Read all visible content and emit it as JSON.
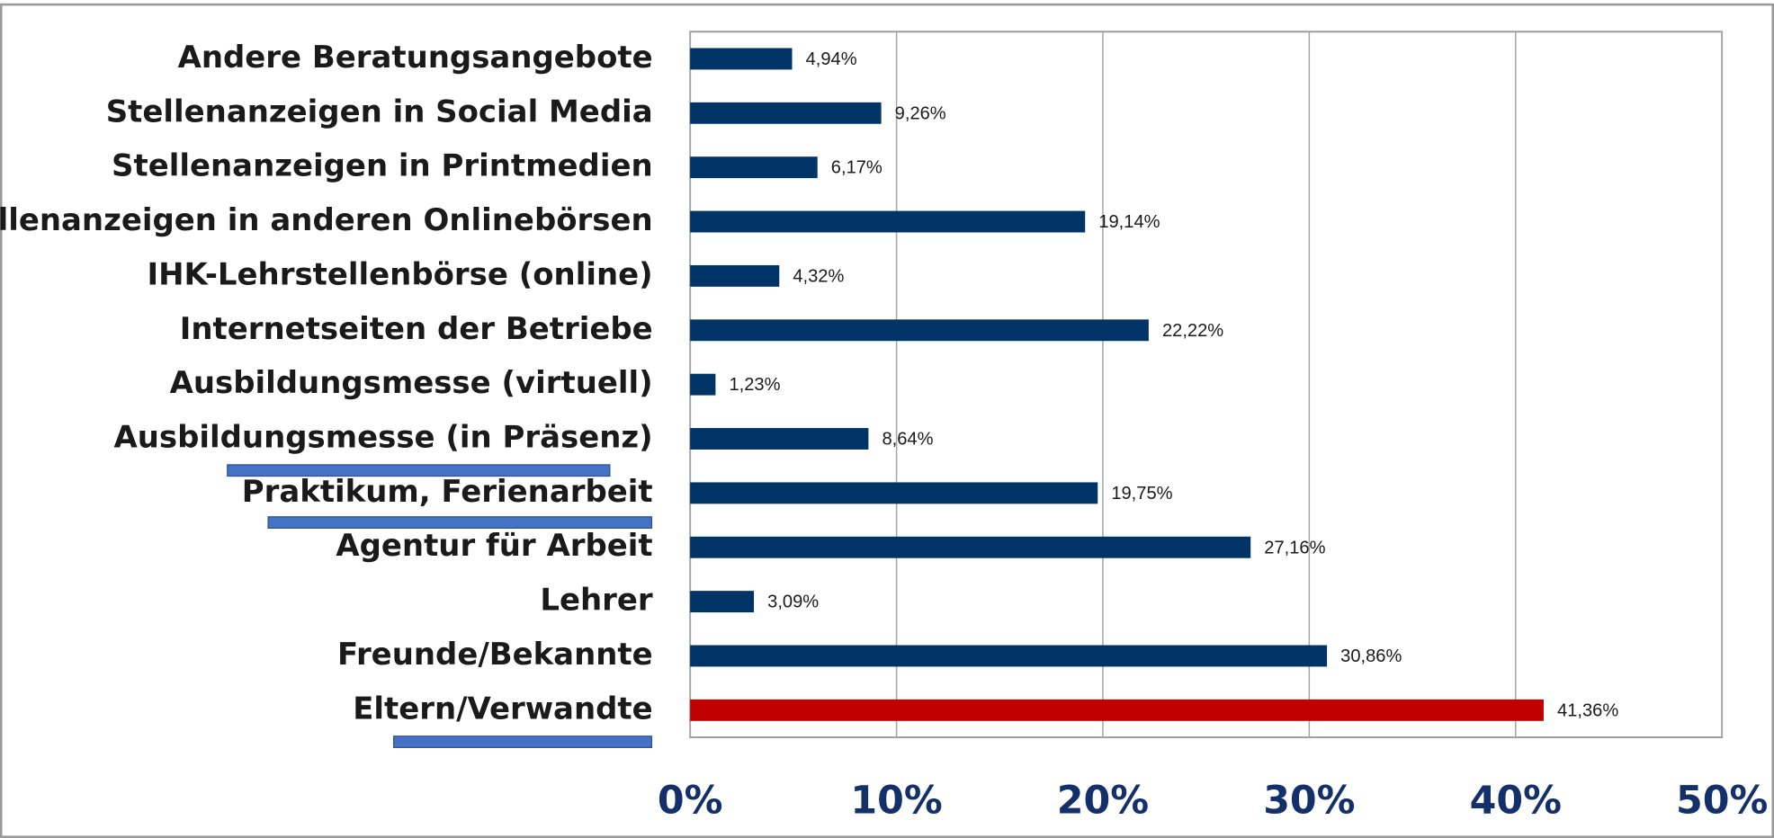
{
  "chart_data": {
    "type": "barh",
    "categories": [
      "Andere Beratungsangebote",
      "Stellenanzeigen in Social Media",
      "Stellenanzeigen in Printmedien",
      "Stellenanzeigen in anderen Onlinebörsen",
      "IHK-Lehrstellenbörse (online)",
      "Internetseiten der Betriebe",
      "Ausbildungsmesse (virtuell)",
      "Ausbildungsmesse (in Präsenz)",
      "Praktikum, Ferienarbeit",
      "Agentur für Arbeit",
      "Lehrer",
      "Freunde/Bekannte",
      "Eltern/Verwandte"
    ],
    "values": [
      4.94,
      9.26,
      6.17,
      19.14,
      4.32,
      22.22,
      1.23,
      8.64,
      19.75,
      27.16,
      3.09,
      30.86,
      41.36
    ],
    "value_labels": [
      "4,94%",
      "9,26%",
      "6,17%",
      "19,14%",
      "4,32%",
      "22,22%",
      "1,23%",
      "8,64%",
      "19,75%",
      "27,16%",
      "3,09%",
      "30,86%",
      "41,36%"
    ],
    "colors": [
      "#003366",
      "#003366",
      "#003366",
      "#003366",
      "#003366",
      "#003366",
      "#003366",
      "#003366",
      "#003366",
      "#003366",
      "#003366",
      "#003366",
      "#c00000"
    ],
    "xlim": [
      0,
      50
    ],
    "xticks": [
      {
        "value": 0,
        "label": "0%"
      },
      {
        "value": 10,
        "label": "10%"
      },
      {
        "value": 20,
        "label": "20%"
      },
      {
        "value": 30,
        "label": "30%"
      },
      {
        "value": 40,
        "label": "40%"
      },
      {
        "value": 50,
        "label": "50%"
      }
    ],
    "grid": true
  }
}
